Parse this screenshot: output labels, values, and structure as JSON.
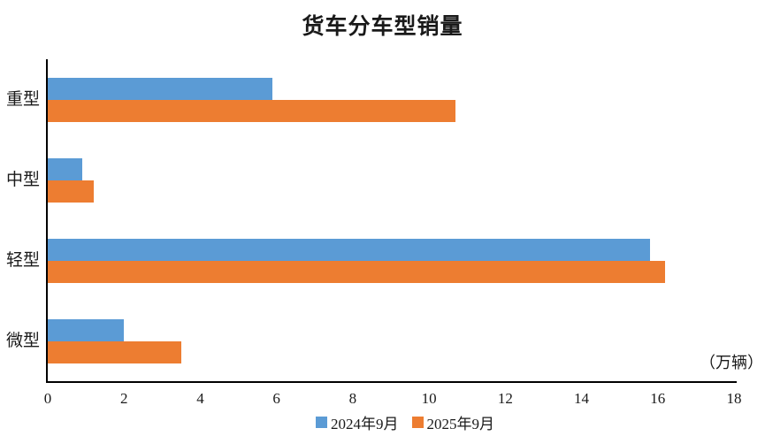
{
  "chart_data": {
    "type": "bar",
    "orientation": "horizontal",
    "title": "货车分车型销量",
    "categories": [
      "重型",
      "中型",
      "轻型",
      "微型"
    ],
    "series": [
      {
        "name": "2024年9月",
        "color": "#5B9BD5",
        "values": [
          5.9,
          0.9,
          15.8,
          2.0
        ]
      },
      {
        "name": "2025年9月",
        "color": "#ED7D31",
        "values": [
          10.7,
          1.2,
          16.2,
          3.5
        ]
      }
    ],
    "x_axis": {
      "min": 0,
      "max": 18,
      "tick_interval": 2,
      "ticks": [
        0,
        2,
        4,
        6,
        8,
        10,
        12,
        14,
        16,
        18
      ],
      "unit_label": "（万辆）"
    },
    "legend_position": "bottom",
    "grid": false,
    "colors": {
      "axis": "#000000",
      "text": "#1a1a1a",
      "background": "#ffffff"
    }
  }
}
